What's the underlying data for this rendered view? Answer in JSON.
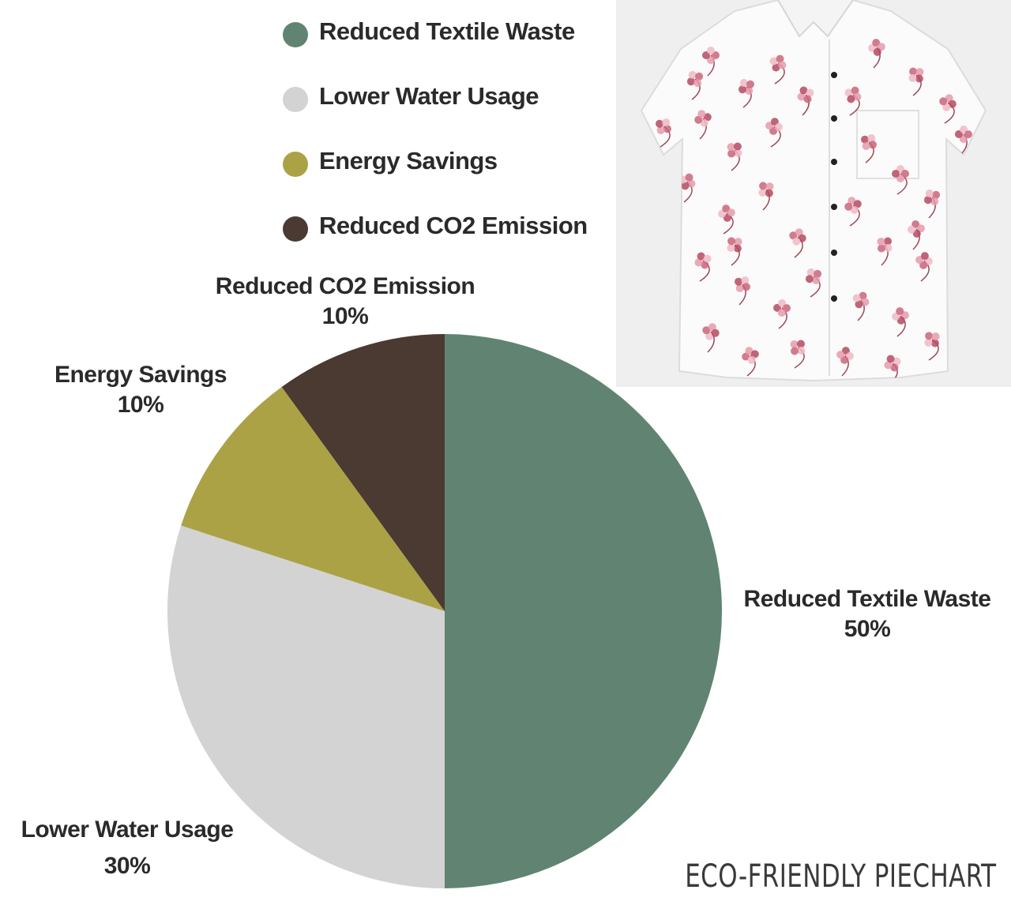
{
  "chart_data": {
    "type": "pie",
    "title": "",
    "categories": [
      "Reduced Textile Waste",
      "Lower Water Usage",
      "Energy Savings",
      "Reduced CO2 Emission"
    ],
    "values": [
      50,
      30,
      10,
      10
    ],
    "value_labels": [
      "50%",
      "30%",
      "10%",
      "10%"
    ],
    "colors": [
      "#608471",
      "#d3d3d3",
      "#aba245",
      "#4b3a31"
    ],
    "start_angle": "12 o'clock",
    "direction": "clockwise",
    "legend_placement": "top"
  },
  "legend": {
    "items": [
      {
        "label": "Reduced Textile Waste",
        "color": "#608471"
      },
      {
        "label": "Lower Water Usage",
        "color": "#d3d3d3"
      },
      {
        "label": "Energy Savings",
        "color": "#aba245"
      },
      {
        "label": "Reduced CO2 Emission",
        "color": "#4b3a31"
      }
    ]
  },
  "slice_labels": {
    "textile": {
      "name": "Reduced Textile Waste",
      "pct": "50%"
    },
    "water": {
      "name": "Lower Water Usage",
      "pct": "30%"
    },
    "energy": {
      "name": "Energy Savings",
      "pct": "10%"
    },
    "co2": {
      "name": "Reduced CO2 Emission",
      "pct": "10%"
    }
  },
  "photo": {
    "subject": "white short-sleeve shirt with pink floral print",
    "icon": "shirt-photo"
  },
  "footer": {
    "caption": "ECO-FRIENDLY PIECHART"
  }
}
